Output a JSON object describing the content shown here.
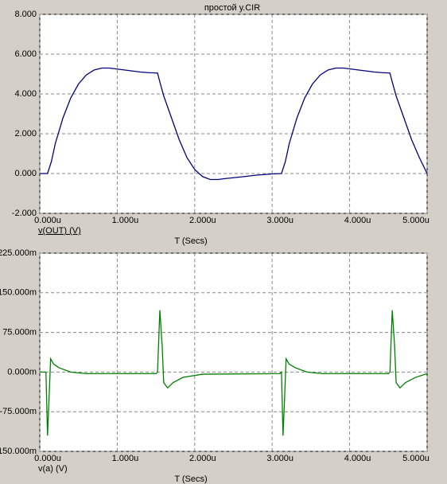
{
  "chart_data": [
    {
      "type": "line",
      "title": "простой у.CIR",
      "x_label": "T (Secs)",
      "grid": true,
      "x": [
        0,
        0.1,
        0.15,
        0.2,
        0.3,
        0.4,
        0.5,
        0.6,
        0.7,
        0.8,
        0.9,
        1.0,
        1.1,
        1.2,
        1.3,
        1.4,
        1.52,
        1.55,
        1.6,
        1.7,
        1.8,
        1.9,
        2.0,
        2.1,
        2.2,
        2.3,
        2.4,
        2.6,
        2.8,
        3.0,
        3.12,
        3.17,
        3.22,
        3.32,
        3.42,
        3.52,
        3.62,
        3.72,
        3.82,
        3.92,
        4.02,
        4.12,
        4.22,
        4.32,
        4.42,
        4.52,
        4.55,
        4.6,
        4.7,
        4.8,
        4.9,
        5.0
      ],
      "series": [
        {
          "name": "v(OUT) (V)",
          "color": "#000080",
          "values": [
            0,
            0,
            0.6,
            1.5,
            2.8,
            3.8,
            4.5,
            4.95,
            5.2,
            5.3,
            5.3,
            5.25,
            5.2,
            5.15,
            5.1,
            5.07,
            5.05,
            4.6,
            3.9,
            2.8,
            1.7,
            0.8,
            0.2,
            -0.15,
            -0.3,
            -0.3,
            -0.25,
            -0.17,
            -0.08,
            -0.02,
            0,
            0.6,
            1.5,
            2.8,
            3.8,
            4.5,
            4.95,
            5.2,
            5.3,
            5.3,
            5.25,
            5.2,
            5.15,
            5.1,
            5.07,
            5.05,
            4.6,
            3.9,
            2.8,
            1.7,
            0.8,
            0
          ]
        }
      ],
      "xlim": [
        0,
        5
      ],
      "xticks": [
        {
          "value": 0,
          "label": "0.000u"
        },
        {
          "value": 1,
          "label": "1.000u"
        },
        {
          "value": 2,
          "label": "2.000u"
        },
        {
          "value": 3,
          "label": "3.000u"
        },
        {
          "value": 4,
          "label": "4.000u"
        },
        {
          "value": 5,
          "label": "5.000u"
        }
      ],
      "ylim": [
        -2,
        8
      ],
      "yticks": [
        {
          "value": 8,
          "label": "8.000"
        },
        {
          "value": 6,
          "label": "6.000"
        },
        {
          "value": 4,
          "label": "4.000"
        },
        {
          "value": 2,
          "label": "2.000"
        },
        {
          "value": 0,
          "label": "0.000"
        },
        {
          "value": -2,
          "label": "-2.000"
        }
      ]
    },
    {
      "type": "line",
      "x_label": "T (Secs)",
      "grid": true,
      "x": [
        0,
        0.08,
        0.1,
        0.12,
        0.14,
        0.18,
        0.25,
        0.4,
        0.6,
        1.5,
        1.52,
        1.55,
        1.58,
        1.6,
        1.65,
        1.72,
        1.85,
        2.1,
        3.1,
        3.12,
        3.14,
        3.16,
        3.18,
        3.22,
        3.3,
        3.45,
        3.65,
        4.5,
        4.52,
        4.55,
        4.58,
        4.6,
        4.65,
        4.72,
        4.85,
        5.0
      ],
      "series": [
        {
          "name": "v(a) (V)",
          "color": "#008000",
          "values": [
            0,
            0,
            -0.12,
            -0.05,
            0.025,
            0.015,
            0.008,
            0,
            -0.003,
            -0.003,
            0,
            0.117,
            0.05,
            -0.02,
            -0.03,
            -0.02,
            -0.01,
            -0.004,
            -0.003,
            0,
            -0.12,
            -0.05,
            0.025,
            0.015,
            0.008,
            0,
            -0.003,
            -0.003,
            0,
            0.117,
            0.05,
            -0.02,
            -0.03,
            -0.02,
            -0.01,
            -0.003
          ]
        }
      ],
      "xlim": [
        0,
        5
      ],
      "xticks": [
        {
          "value": 0,
          "label": "0.000u"
        },
        {
          "value": 1,
          "label": "1.000u"
        },
        {
          "value": 2,
          "label": "2.000u"
        },
        {
          "value": 3,
          "label": "3.000u"
        },
        {
          "value": 4,
          "label": "4.000u"
        },
        {
          "value": 5,
          "label": "5.000u"
        }
      ],
      "ylim": [
        -0.15,
        0.225
      ],
      "yticks": [
        {
          "value": 0.225,
          "label": "225.000m"
        },
        {
          "value": 0.15,
          "label": "150.000m"
        },
        {
          "value": 0.075,
          "label": "75.000m"
        },
        {
          "value": 0,
          "label": "0.000m"
        },
        {
          "value": -0.075,
          "label": "-75.000m"
        },
        {
          "value": -0.15,
          "label": "-150.000m"
        }
      ]
    }
  ]
}
